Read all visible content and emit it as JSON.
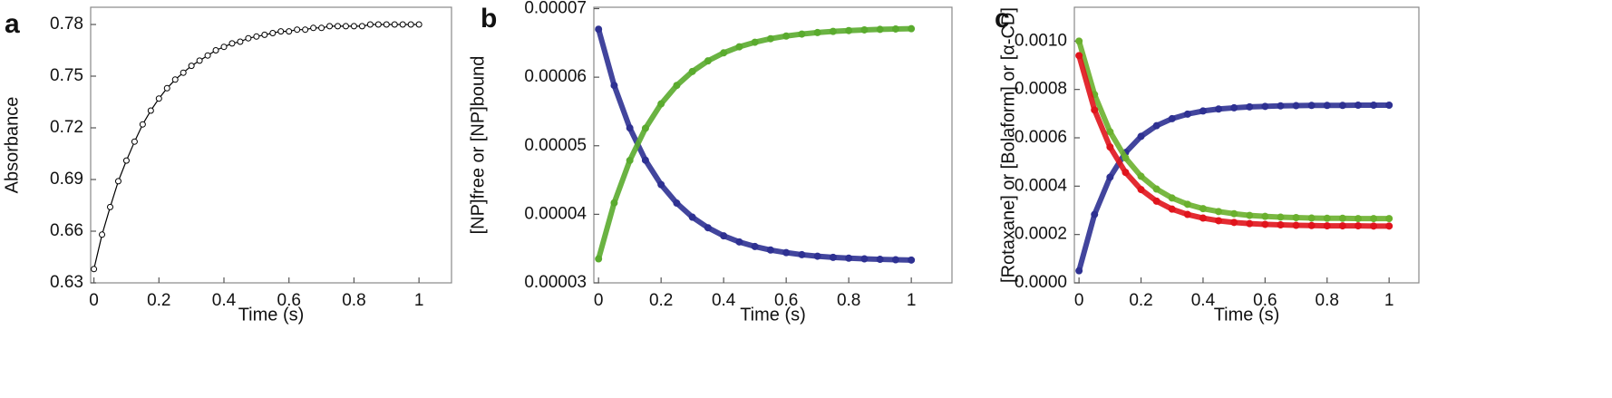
{
  "chart_data": [
    {
      "type": "scatter",
      "label": "a",
      "x_label": "Time (s)",
      "y_label": "Absorbance",
      "x": [
        0,
        0.025,
        0.05,
        0.075,
        0.1,
        0.125,
        0.15,
        0.175,
        0.2,
        0.225,
        0.25,
        0.275,
        0.3,
        0.325,
        0.35,
        0.375,
        0.4,
        0.425,
        0.45,
        0.475,
        0.5,
        0.525,
        0.55,
        0.575,
        0.6,
        0.625,
        0.65,
        0.675,
        0.7,
        0.725,
        0.75,
        0.775,
        0.8,
        0.825,
        0.85,
        0.875,
        0.9,
        0.925,
        0.95,
        0.975,
        1
      ],
      "series": [
        {
          "color": "#000000",
          "filled": false,
          "values": [
            0.638,
            0.658,
            0.674,
            0.689,
            0.701,
            0.712,
            0.722,
            0.73,
            0.737,
            0.743,
            0.748,
            0.752,
            0.756,
            0.759,
            0.762,
            0.765,
            0.767,
            0.769,
            0.77,
            0.772,
            0.773,
            0.774,
            0.775,
            0.776,
            0.776,
            0.777,
            0.777,
            0.778,
            0.778,
            0.779,
            0.779,
            0.779,
            0.779,
            0.779,
            0.78,
            0.78,
            0.78,
            0.78,
            0.78,
            0.78,
            0.78
          ]
        }
      ],
      "xlim": [
        -0.01,
        1.1
      ],
      "xticks": [
        0,
        0.2,
        0.4,
        0.6,
        0.8,
        1
      ],
      "ylim": [
        0.63,
        0.79
      ],
      "yticks": [
        0.63,
        0.66,
        0.69,
        0.72,
        0.75,
        0.78
      ]
    },
    {
      "type": "scatter",
      "label": "b",
      "x_label": "Time (s)",
      "y_label": "[NP]free or [NP]bound",
      "x": [
        0,
        0.05,
        0.1,
        0.15,
        0.2,
        0.25,
        0.3,
        0.35,
        0.4,
        0.45,
        0.5,
        0.55,
        0.6,
        0.65,
        0.7,
        0.75,
        0.8,
        0.85,
        0.9,
        0.95,
        1
      ],
      "series": [
        {
          "color": "#2e3192",
          "filled": true,
          "values": [
            6.7e-05,
            5.88e-05,
            5.259e-05,
            4.789e-05,
            4.433e-05,
            4.163e-05,
            3.958e-05,
            3.804e-05,
            3.686e-05,
            3.597e-05,
            3.53e-05,
            3.479e-05,
            3.441e-05,
            3.411e-05,
            3.389e-05,
            3.372e-05,
            3.36e-05,
            3.35e-05,
            3.343e-05,
            3.337e-05,
            3.333e-05
          ]
        },
        {
          "color": "#5aab2e",
          "filled": true,
          "values": [
            3.35e-05,
            4.167e-05,
            4.786e-05,
            5.255e-05,
            5.611e-05,
            5.88e-05,
            6.083e-05,
            6.238e-05,
            6.355e-05,
            6.443e-05,
            6.51e-05,
            6.561e-05,
            6.6e-05,
            6.629e-05,
            6.651e-05,
            6.668e-05,
            6.68e-05,
            6.69e-05,
            6.697e-05,
            6.703e-05,
            6.707e-05
          ]
        }
      ],
      "xlim": [
        -0.015,
        1.13
      ],
      "xticks": [
        0,
        0.2,
        0.4,
        0.6,
        0.8,
        1
      ],
      "ylim": [
        3e-05,
        7.02e-05
      ],
      "yticks": [
        3e-05,
        4e-05,
        5e-05,
        6e-05,
        7e-05
      ]
    },
    {
      "type": "scatter",
      "label": "c",
      "x_label": "Time (s)",
      "y_label": "[Rotaxane] or [Bolaform] or [α-CD]",
      "x": [
        0,
        0.05,
        0.1,
        0.15,
        0.2,
        0.25,
        0.3,
        0.35,
        0.4,
        0.45,
        0.5,
        0.55,
        0.6,
        0.65,
        0.7,
        0.75,
        0.8,
        0.85,
        0.9,
        0.95,
        1
      ],
      "series": [
        {
          "color": "#2e3192",
          "filled": true,
          "values": [
            5e-05,
            0.000283,
            0.000437,
            0.000539,
            0.000606,
            0.00065,
            0.000679,
            0.000698,
            0.000711,
            0.000719,
            0.000724,
            0.000728,
            0.00073,
            0.000732,
            0.000733,
            0.000734,
            0.000734,
            0.000734,
            0.000735,
            0.000735,
            0.000735
          ]
        },
        {
          "color": "#6ab02e",
          "filled": true,
          "values": [
            0.001,
            0.000779,
            0.000625,
            0.000517,
            0.000441,
            0.000388,
            0.000351,
            0.000325,
            0.000307,
            0.000295,
            0.000286,
            0.000279,
            0.000275,
            0.000272,
            0.00027,
            0.000268,
            0.000267,
            0.000267,
            0.000266,
            0.000266,
            0.000266
          ]
        },
        {
          "color": "#e0141c",
          "filled": true,
          "values": [
            0.00094,
            0.000715,
            0.000562,
            0.000457,
            0.000386,
            0.000338,
            0.000305,
            0.000283,
            0.000268,
            0.000257,
            0.00025,
            0.000245,
            0.000242,
            0.00024,
            0.000238,
            0.000237,
            0.000236,
            0.000236,
            0.000236,
            0.000235,
            0.000235
          ]
        }
      ],
      "xlim": [
        -0.015,
        1.096
      ],
      "xticks": [
        0,
        0.2,
        0.4,
        0.6,
        0.8,
        1
      ],
      "ylim": [
        0,
        0.00114
      ],
      "yticks": [
        {
          "value": 0,
          "label": "0.0000"
        },
        {
          "value": 0.0002,
          "label": "0.0002"
        },
        {
          "value": 0.0004,
          "label": "0.0004"
        },
        {
          "value": 0.0006,
          "label": "0.0006"
        },
        {
          "value": 0.0008,
          "label": "0.0008"
        },
        {
          "value": 0.001,
          "label": "0.0010"
        }
      ]
    }
  ]
}
